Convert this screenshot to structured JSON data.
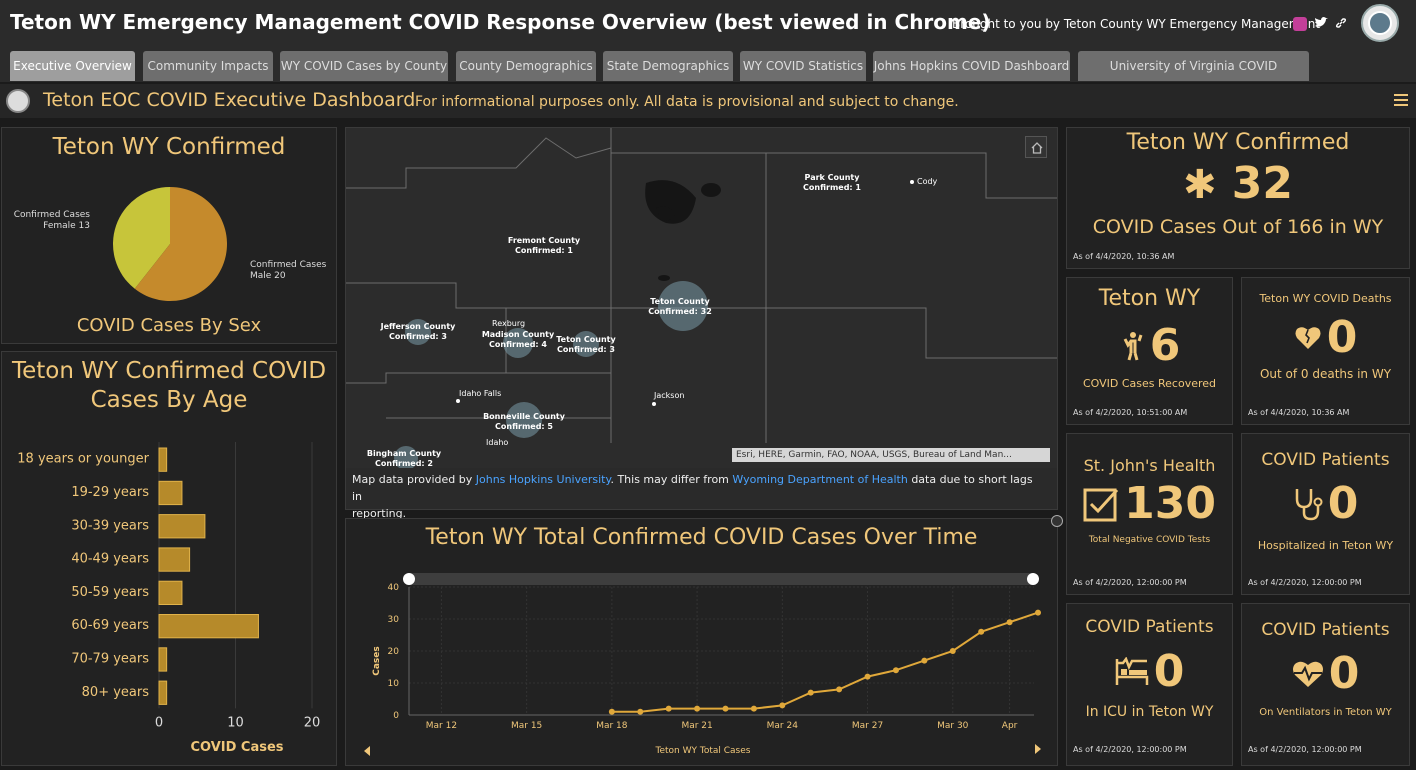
{
  "header": {
    "title": "Teton WY Emergency Management COVID Response Overview (best viewed in Chrome)",
    "brought_by": "Brought to you by Teton County WY Emergency Management"
  },
  "tabs": [
    {
      "label": "Executive Overview",
      "active": true
    },
    {
      "label": "Community Impacts"
    },
    {
      "label": "WY COVID Cases by County"
    },
    {
      "label": "County Demographics"
    },
    {
      "label": "State Demographics"
    },
    {
      "label": "WY COVID Statistics"
    },
    {
      "label": "Johns Hopkins COVID Dashboard"
    },
    {
      "label": "University of Virginia COVID Dashboard"
    }
  ],
  "dashboard": {
    "title": "Teton EOC COVID Executive Dashboard",
    "note": "For informational purposes only. All data is provisional and subject to change."
  },
  "sex_card": {
    "title": "Teton WY Confirmed",
    "subtitle": "COVID Cases By Sex",
    "female_label": "Confirmed Cases",
    "female_value": "Female 13",
    "male_label": "Confirmed Cases",
    "male_value": "Male 20"
  },
  "age_card": {
    "title_line1": "Teton WY Confirmed COVID",
    "title_line2": "Cases By Age",
    "xlabel": "COVID Cases"
  },
  "map": {
    "labels": [
      {
        "name": "Park County",
        "count": "Confirmed: 1"
      },
      {
        "name": "Fremont County",
        "count": "Confirmed: 1"
      },
      {
        "name": "Teton County",
        "count": "Confirmed: 32"
      },
      {
        "name": "Jefferson County",
        "count": "Confirmed: 3"
      },
      {
        "name": "Madison County",
        "count": "Confirmed: 4"
      },
      {
        "name": "Teton County",
        "count": "Confirmed: 3"
      },
      {
        "name": "Bonneville County",
        "count": "Confirmed: 5"
      },
      {
        "name": "Bingham County",
        "count": "Confirmed: 2"
      }
    ],
    "towns": [
      "Cody",
      "Rexburg",
      "Idaho Falls",
      "Jackson",
      "Idaho"
    ],
    "attribution": "Esri, HERE, Garmin, FAO, NOAA, USGS, Bureau of Land Man...",
    "caption_1": "Map data provided by",
    "caption_link1": "Johns Hopkins University",
    "caption_2": ". This may differ from",
    "caption_link2": "Wyoming Department of Health",
    "caption_3": "data due to short lags in",
    "caption_4": "reporting."
  },
  "timeline": {
    "title": "Teton WY Total Confirmed COVID Cases Over Time",
    "ylabel": "Cases",
    "legend": "Teton WY Total Cases"
  },
  "confirmed_card": {
    "title": "Teton WY Confirmed",
    "value": "32",
    "subtitle": "COVID Cases Out of 166 in WY",
    "stamp": "As of 4/4/2020, 10:36 AM"
  },
  "recovered_card": {
    "title": "Teton WY",
    "value": "6",
    "subtitle": "COVID Cases Recovered",
    "stamp": "As of 4/2/2020, 10:51:00 AM"
  },
  "deaths_card": {
    "title": "Teton WY COVID Deaths",
    "value": "0",
    "subtitle": "Out of 0 deaths in WY",
    "stamp": "As of 4/4/2020, 10:36 AM"
  },
  "stjohns_card": {
    "title": "St. John's Health",
    "value": "130",
    "subtitle": "Total Negative COVID Tests",
    "stamp": "As of 4/2/2020, 12:00:00 PM"
  },
  "hospitalized_card": {
    "title": "COVID Patients",
    "value": "0",
    "subtitle": "Hospitalized in Teton WY",
    "stamp": "As of 4/2/2020, 12:00:00 PM"
  },
  "icu_card": {
    "title": "COVID Patients",
    "value": "0",
    "subtitle": "In ICU in Teton WY",
    "stamp": "As of 4/2/2020, 12:00:00 PM"
  },
  "vent_card": {
    "title": "COVID Patients",
    "value": "0",
    "subtitle": "On Ventilators in Teton WY",
    "stamp": "As of 4/2/2020, 12:00:00 PM"
  },
  "colors": {
    "accent": "#f0c77a",
    "bar": "#b68a2a",
    "female": "#c7c53a",
    "male": "#c58a2c",
    "panel": "#222222"
  },
  "chart_data": [
    {
      "type": "pie",
      "labels": [
        "Confirmed Cases Female 13",
        "Confirmed Cases Male 20"
      ],
      "values": [
        13,
        20
      ],
      "title": "COVID Cases By Sex"
    },
    {
      "type": "bar",
      "orientation": "horizontal",
      "title": "Teton WY Confirmed COVID Cases By Age",
      "categories": [
        "18 years or younger",
        "19-29 years",
        "30-39 years",
        "40-49 years",
        "50-59 years",
        "60-69 years",
        "70-79 years",
        "80+ years"
      ],
      "values": [
        1,
        3,
        6,
        4,
        3,
        13,
        1,
        1
      ],
      "xlabel": "COVID Cases",
      "xlim": [
        0,
        20
      ],
      "xticks": [
        "0",
        "10",
        "20"
      ]
    },
    {
      "type": "line",
      "title": "Teton WY Total Confirmed COVID Cases Over Time",
      "ylabel": "Cases",
      "xlabel": "",
      "series": [
        {
          "name": "Teton WY Total Cases",
          "x": [
            "Mar 18",
            "Mar 19",
            "Mar 20",
            "Mar 21",
            "Mar 22",
            "Mar 23",
            "Mar 24",
            "Mar 25",
            "Mar 26",
            "Mar 27",
            "Mar 28",
            "Mar 29",
            "Mar 30",
            "Mar 31",
            "Apr 1",
            "Apr 2"
          ],
          "values": [
            1,
            1,
            2,
            2,
            2,
            2,
            3,
            7,
            8,
            12,
            14,
            17,
            20,
            26,
            29,
            32
          ]
        }
      ],
      "xticks": [
        "Mar 12",
        "Mar 15",
        "Mar 18",
        "Mar 21",
        "Mar 24",
        "Mar 27",
        "Mar 30",
        "Apr"
      ],
      "yticks": [
        "0",
        "10",
        "20",
        "30",
        "40"
      ],
      "ylim": [
        0,
        40
      ],
      "x_start": "Mar 11"
    }
  ]
}
